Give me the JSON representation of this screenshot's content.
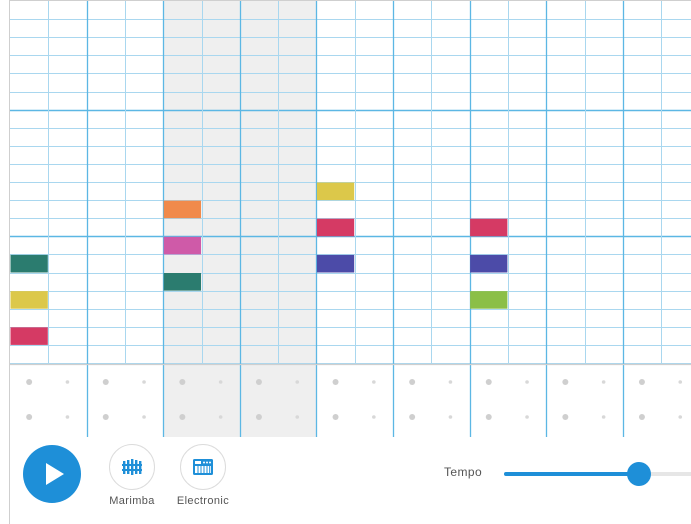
{
  "instruments": [
    {
      "label": "Marimba",
      "icon": "marimba-icon"
    },
    {
      "label": "Electronic",
      "icon": "electronic-keyboard-icon"
    }
  ],
  "play": {
    "icon": "play-icon"
  },
  "tempo": {
    "label": "Tempo",
    "value_fraction": 0.71
  },
  "grid": {
    "steps": 18,
    "pitch_rows": 20,
    "shaded_bars": [
      2,
      3
    ],
    "notes": [
      {
        "step": 0,
        "row": 14,
        "color": "#2b7c6f"
      },
      {
        "step": 0,
        "row": 16,
        "color": "#dcc84a"
      },
      {
        "step": 0,
        "row": 18,
        "color": "#d53a64"
      },
      {
        "step": 4,
        "row": 11,
        "color": "#f08a4b"
      },
      {
        "step": 4,
        "row": 13,
        "color": "#cf5aa8"
      },
      {
        "step": 4,
        "row": 15,
        "color": "#2b7c6f"
      },
      {
        "step": 8,
        "row": 10,
        "color": "#dcc84a"
      },
      {
        "step": 8,
        "row": 12,
        "color": "#d53a64"
      },
      {
        "step": 8,
        "row": 14,
        "color": "#4c4ba8"
      },
      {
        "step": 12,
        "row": 12,
        "color": "#d53a64"
      },
      {
        "step": 12,
        "row": 14,
        "color": "#4c4ba8"
      },
      {
        "step": 12,
        "row": 16,
        "color": "#8bbf47"
      }
    ]
  },
  "colors": {
    "accent": "#1e8fd8",
    "grid_line": "#a9d7ef",
    "bar_line": "#5cb7e4",
    "shade": "#efefef"
  }
}
